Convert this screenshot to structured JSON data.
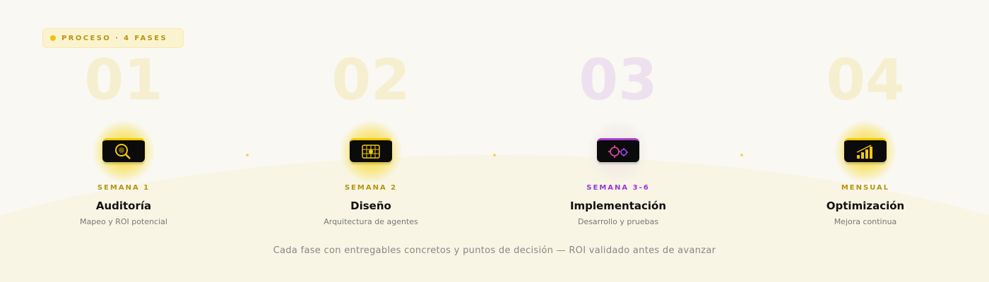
{
  "badge": {
    "label": "PROCESO · 4 FASES"
  },
  "colors": {
    "accent": "#f3c809",
    "accent_text": "#b8950e",
    "highlight": "#9a35d8"
  },
  "phases": [
    {
      "number": "01",
      "week": "SEMANA 1",
      "title": "Auditoría",
      "description": "Mapeo y ROI potencial",
      "icon": "magnifier-icon"
    },
    {
      "number": "02",
      "week": "SEMANA 2",
      "title": "Diseño",
      "description": "Arquitectura de agentes",
      "icon": "blueprint-grid-icon"
    },
    {
      "number": "03",
      "week": "SEMANA 3-6",
      "title": "Implementación",
      "description": "Desarrollo y pruebas",
      "icon": "gears-icon"
    },
    {
      "number": "04",
      "week": "MENSUAL",
      "title": "Optimización",
      "description": "Mejora continua",
      "icon": "growth-chart-icon"
    }
  ],
  "footer": "Cada fase con entregables concretos y puntos de decisión — ROI validado antes de avanzar"
}
